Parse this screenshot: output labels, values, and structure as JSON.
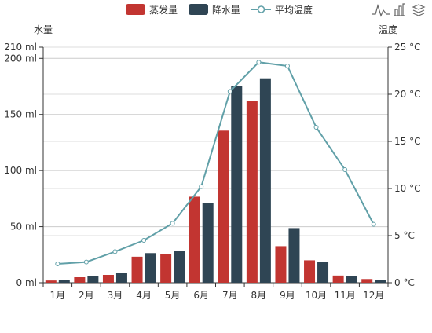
{
  "chart_data": {
    "type": "bar",
    "categories": [
      "1月",
      "2月",
      "3月",
      "4月",
      "5月",
      "6月",
      "7月",
      "8月",
      "9月",
      "10月",
      "11月",
      "12月"
    ],
    "series": [
      {
        "name": "蒸发量",
        "type": "bar",
        "axis": "left",
        "color": "#c23531",
        "values": [
          2.0,
          4.9,
          7.0,
          23.2,
          25.6,
          76.7,
          135.6,
          162.2,
          32.6,
          20.0,
          6.4,
          3.3
        ]
      },
      {
        "name": "降水量",
        "type": "bar",
        "axis": "left",
        "color": "#2f4554",
        "values": [
          2.6,
          5.9,
          9.0,
          26.4,
          28.7,
          70.7,
          175.6,
          182.2,
          48.7,
          18.8,
          6.0,
          2.3
        ]
      },
      {
        "name": "平均温度",
        "type": "line",
        "axis": "right",
        "color": "#61a0a8",
        "values": [
          2.0,
          2.2,
          3.3,
          4.5,
          6.3,
          10.2,
          20.3,
          23.4,
          23.0,
          16.5,
          12.0,
          6.2
        ]
      }
    ],
    "left_axis": {
      "label": "水量",
      "unit": "ml",
      "ticks": [
        {
          "value": 0,
          "label": "0 ml"
        },
        {
          "value": 50,
          "label": "50 ml"
        },
        {
          "value": 100,
          "label": "100 ml"
        },
        {
          "value": 150,
          "label": "150 ml"
        },
        {
          "value": 200,
          "label": "200 ml"
        },
        {
          "value": 210,
          "label": "210 ml"
        }
      ],
      "ylim": [
        0,
        210
      ]
    },
    "right_axis": {
      "label": "温度",
      "unit": "°C",
      "ticks": [
        {
          "value": 0,
          "label": "0 °C"
        },
        {
          "value": 5,
          "label": "5 °C"
        },
        {
          "value": 10,
          "label": "10 °C"
        },
        {
          "value": 15,
          "label": "15 °C"
        },
        {
          "value": 20,
          "label": "20 °C"
        },
        {
          "value": 25,
          "label": "25 °C"
        }
      ],
      "ylim": [
        0,
        25
      ]
    },
    "legend": {
      "position": "top-center",
      "items": [
        "蒸发量",
        "降水量",
        "平均温度"
      ]
    },
    "grid": true,
    "toolbox": {
      "position": "top-right",
      "icons": [
        "line-chart-icon",
        "bar-chart-icon",
        "stack-icon"
      ]
    }
  }
}
